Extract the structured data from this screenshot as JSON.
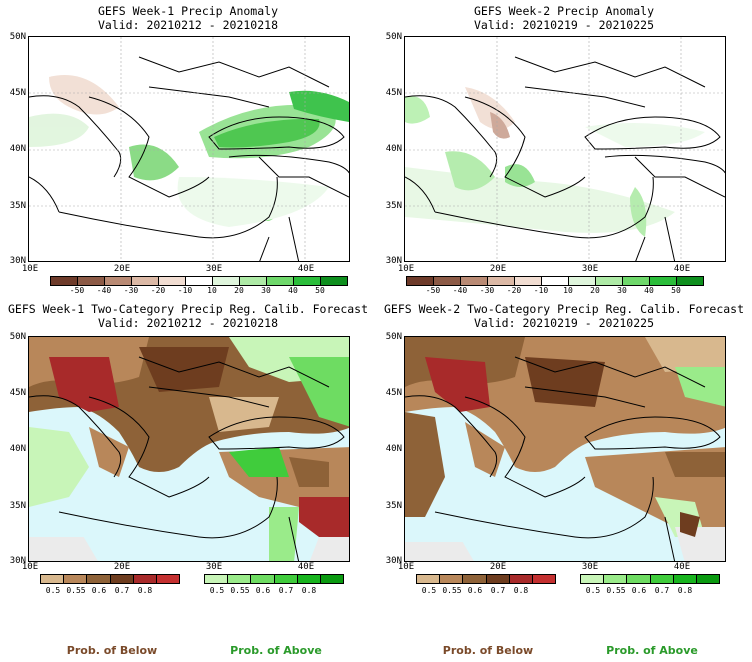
{
  "panels": [
    {
      "title": "GEFS Week-1 Precip Anomaly",
      "valid": "Valid: 20210212 - 20210218"
    },
    {
      "title": "GEFS Week-2 Precip Anomaly",
      "valid": "Valid: 20210219 - 20210225"
    },
    {
      "title": "GEFS Week-1 Two-Category Precip Reg. Calib. Forecast",
      "valid": "Valid: 20210212 - 20210218"
    },
    {
      "title": "GEFS Week-2 Two-Category Precip Reg. Calib. Forecast",
      "valid": "Valid: 20210219 - 20210225"
    }
  ],
  "lat_labels": [
    "50N",
    "45N",
    "40N",
    "35N",
    "30N"
  ],
  "lon_labels": [
    "10E",
    "20E",
    "30E",
    "40E"
  ],
  "anomaly_colorbar": {
    "labels": [
      "-50",
      "-40",
      "-30",
      "-20",
      "-10",
      "10",
      "20",
      "30",
      "40",
      "50"
    ],
    "colors": [
      "#6e3b2a",
      "#8c5a46",
      "#b98a74",
      "#dcb9a6",
      "#f1ddd2",
      "#ffffff",
      "#dff5dc",
      "#aeeaa6",
      "#6fd86b",
      "#2bbd3a",
      "#0e8f1e"
    ]
  },
  "below_colorbar": {
    "labels": [
      "0.5",
      "0.55",
      "0.6",
      "0.7",
      "0.8"
    ],
    "colors": [
      "#d8b88e",
      "#b8875a",
      "#8e6238",
      "#6e3d1f",
      "#a82a2a",
      "#c43030"
    ]
  },
  "above_colorbar": {
    "labels": [
      "0.5",
      "0.55",
      "0.6",
      "0.7",
      "0.8"
    ],
    "colors": [
      "#c8f5b8",
      "#9aeb8a",
      "#6edc62",
      "#40cc3c",
      "#18b41e",
      "#0a9a10"
    ]
  },
  "legend": {
    "below": "Prob. of Below",
    "above": "Prob. of Above"
  },
  "colors": {
    "ocean": "#dbf7fb",
    "land_none": "#ebebeb",
    "below_text": "#7a4a2a",
    "above_text": "#2a9a2a"
  }
}
